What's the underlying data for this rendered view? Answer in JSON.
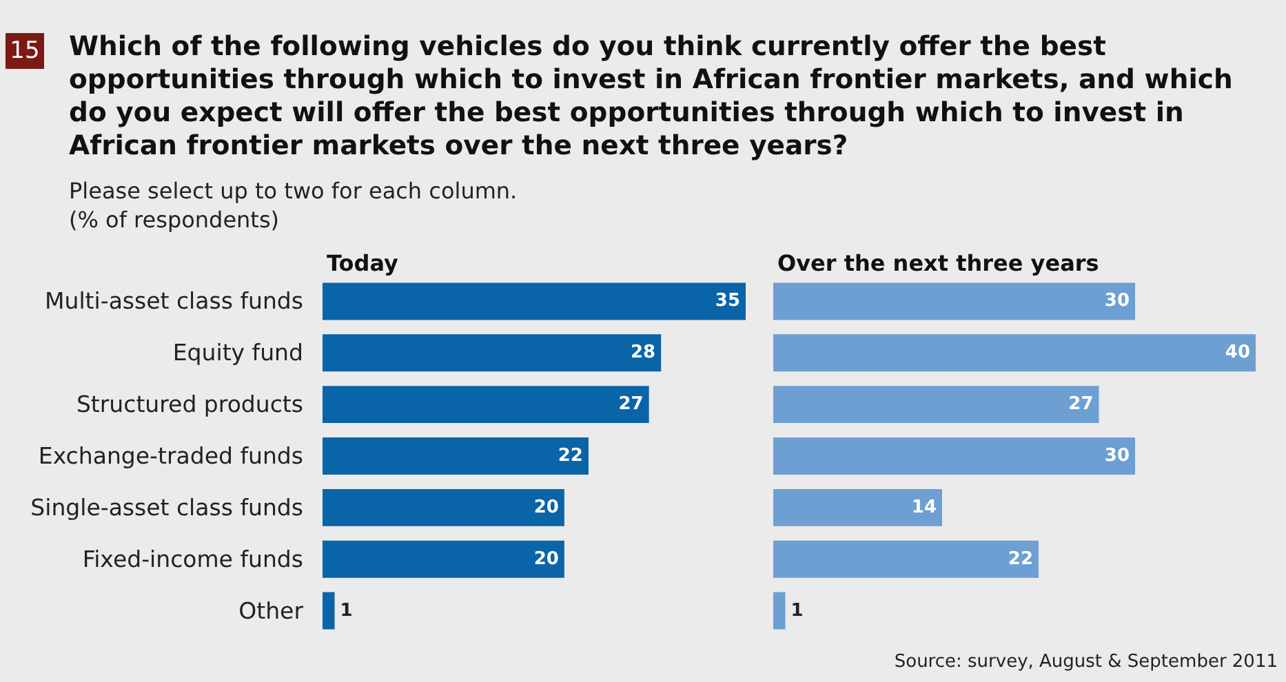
{
  "chart_data": [
    {
      "type": "other",
      "title": "Which of the following vehicles do you think currently offer the best opportunities through which to invest in African frontier markets, and which do you expect will offer the best opportunities through which to invest in African frontier markets over the next three years?",
      "subtitle": "Please select up to two for each column.\n(% of respondents)",
      "annotations": [
        "15"
      ]
    },
    {
      "type": "bar",
      "orientation": "horizontal",
      "title": "Today",
      "categories": [
        "Multi-asset class funds",
        "Equity fund",
        "Structured products",
        "Exchange-traded funds",
        "Single-asset class funds",
        "Fixed-income funds",
        "Other"
      ],
      "values": [
        35,
        28,
        27,
        22,
        20,
        20,
        1
      ],
      "color": "#0a64a8",
      "data_labels": true,
      "tick_labels": "y"
    },
    {
      "type": "bar",
      "orientation": "horizontal",
      "title": "Over the next three years",
      "categories": [
        null,
        null,
        null,
        null,
        null,
        null,
        null
      ],
      "values": [
        30,
        40,
        27,
        30,
        14,
        22,
        1
      ],
      "color": "#6d9fd2",
      "data_labels": true,
      "tick_labels": false,
      "annotations": [
        "Source: survey, August & September 2011"
      ]
    }
  ]
}
